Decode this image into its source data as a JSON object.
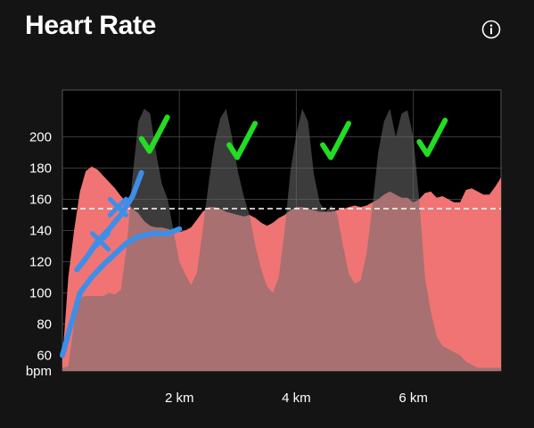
{
  "header": {
    "title": "Heart Rate",
    "info_icon": "info-circle-icon"
  },
  "colors": {
    "background": "#141414",
    "plot_background": "#000000",
    "heart_rate_fill": "#f07474",
    "reference_fill": "#6e6e6e",
    "threshold_line": "#ffffff",
    "blue_annotation": "#3d8ee8",
    "green_check": "#22dd22"
  },
  "chart_data": {
    "type": "area",
    "x_unit": "km",
    "y_unit": "bpm",
    "xlim": [
      0,
      7.5
    ],
    "ylim": [
      50,
      230
    ],
    "x_ticks": [
      {
        "value": 2,
        "label": "2 km"
      },
      {
        "value": 4,
        "label": "4 km"
      },
      {
        "value": 6,
        "label": "6 km"
      }
    ],
    "y_ticks": [
      {
        "value": 60,
        "label": "60"
      },
      {
        "value": 80,
        "label": "80"
      },
      {
        "value": 100,
        "label": "100"
      },
      {
        "value": 120,
        "label": "120"
      },
      {
        "value": 140,
        "label": "140"
      },
      {
        "value": 160,
        "label": "160"
      },
      {
        "value": 180,
        "label": "180"
      },
      {
        "value": 200,
        "label": "200"
      }
    ],
    "y_unit_label": "bpm",
    "grid": true,
    "threshold": 154,
    "series": [
      {
        "x": [
          0.0,
          0.1,
          0.2,
          0.3,
          0.4,
          0.5,
          0.6,
          0.7,
          0.8,
          0.9,
          1.0,
          1.1,
          1.2,
          1.3,
          1.4,
          1.5,
          1.6,
          1.7,
          1.8,
          1.9,
          2.0,
          2.1,
          2.2,
          2.3,
          2.4,
          2.5,
          2.6,
          2.7,
          2.8,
          2.9,
          3.0,
          3.1,
          3.2,
          3.3,
          3.4,
          3.5,
          3.6,
          3.7,
          3.8,
          3.9,
          4.0,
          4.1,
          4.2,
          4.3,
          4.4,
          4.5,
          4.6,
          4.7,
          4.8,
          4.9,
          5.0,
          5.1,
          5.2,
          5.3,
          5.4,
          5.5,
          5.6,
          5.7,
          5.8,
          5.9,
          6.0,
          6.1,
          6.2,
          6.3,
          6.4,
          6.5,
          6.6,
          6.7,
          6.8,
          6.9,
          7.0,
          7.1,
          7.2,
          7.3,
          7.4,
          7.5
        ],
        "values": [
          57,
          110,
          140,
          165,
          178,
          181,
          179,
          175,
          171,
          167,
          162,
          158,
          154,
          151,
          146,
          143,
          142,
          142,
          141,
          140,
          139,
          140,
          142,
          147,
          152,
          155,
          155,
          154,
          152,
          151,
          150,
          149,
          150,
          148,
          145,
          143,
          145,
          148,
          150,
          153,
          155,
          155,
          154,
          153,
          152,
          152,
          152,
          153,
          154,
          155,
          156,
          155,
          156,
          158,
          160,
          163,
          165,
          163,
          161,
          161,
          158,
          160,
          164,
          165,
          161,
          162,
          160,
          158,
          158,
          166,
          167,
          165,
          163,
          163,
          168,
          174
        ]
      },
      {
        "x": [
          0.0,
          0.1,
          0.2,
          0.3,
          0.4,
          0.5,
          0.6,
          0.7,
          0.8,
          0.9,
          1.0,
          1.1,
          1.2,
          1.3,
          1.4,
          1.5,
          1.6,
          1.7,
          1.8,
          1.9,
          2.0,
          2.1,
          2.2,
          2.3,
          2.4,
          2.5,
          2.6,
          2.7,
          2.8,
          2.9,
          3.0,
          3.1,
          3.2,
          3.3,
          3.4,
          3.5,
          3.6,
          3.7,
          3.8,
          3.9,
          4.0,
          4.1,
          4.2,
          4.3,
          4.4,
          4.5,
          4.6,
          4.7,
          4.8,
          4.9,
          5.0,
          5.1,
          5.2,
          5.3,
          5.4,
          5.5,
          5.6,
          5.7,
          5.8,
          5.9,
          6.0,
          6.1,
          6.2,
          6.3,
          6.4,
          6.5,
          6.6,
          6.7,
          6.8,
          6.9,
          7.0,
          7.1,
          7.2,
          7.3,
          7.4,
          7.5
        ],
        "values": [
          52,
          53,
          80,
          97,
          98,
          98,
          98,
          98,
          100,
          99,
          102,
          130,
          175,
          210,
          218,
          215,
          190,
          170,
          160,
          140,
          120,
          112,
          105,
          113,
          140,
          170,
          196,
          212,
          218,
          200,
          178,
          162,
          150,
          130,
          115,
          104,
          100,
          110,
          140,
          178,
          202,
          218,
          210,
          176,
          158,
          152,
          156,
          150,
          130,
          112,
          106,
          108,
          125,
          155,
          190,
          210,
          218,
          200,
          215,
          217,
          200,
          160,
          110,
          88,
          72,
          66,
          64,
          62,
          60,
          56,
          54,
          52,
          52,
          52,
          52,
          52
        ]
      }
    ],
    "annotations": [
      {
        "type": "handwritten-line",
        "x": [
          0.0,
          0.15,
          0.3,
          0.5,
          0.7,
          0.9,
          1.1,
          1.3,
          1.5,
          1.8,
          2.0
        ],
        "y": [
          60,
          80,
          100,
          110,
          118,
          125,
          132,
          136,
          138,
          138,
          141
        ]
      },
      {
        "type": "handwritten-line",
        "x": [
          0.25,
          0.4,
          0.6,
          0.8,
          1.0,
          1.2,
          1.35
        ],
        "y": [
          115,
          122,
          133,
          141,
          150,
          162,
          177
        ]
      },
      {
        "type": "check",
        "x": 1.55,
        "y": 200
      },
      {
        "type": "check",
        "x": 3.05,
        "y": 196
      },
      {
        "type": "check",
        "x": 4.65,
        "y": 196
      },
      {
        "type": "check",
        "x": 6.3,
        "y": 198
      }
    ]
  }
}
